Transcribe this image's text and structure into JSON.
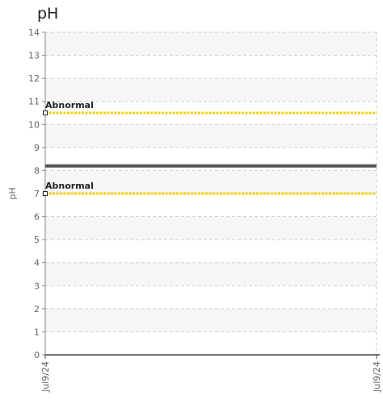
{
  "chart_data": {
    "type": "line",
    "title": "pH",
    "ylabel": "pH",
    "xlabel": "",
    "ylim": [
      0,
      14
    ],
    "yticks": [
      0,
      1,
      2,
      3,
      4,
      5,
      6,
      7,
      8,
      9,
      10,
      11,
      12,
      13,
      14
    ],
    "x_ticks": [
      "Jul9/24",
      "Jul9/24"
    ],
    "grid": true,
    "series": [
      {
        "values": [
          8.2,
          8.2
        ],
        "color": "#555555"
      }
    ],
    "reference_lines": [
      {
        "label": "Abnormal",
        "value": 10.5,
        "color": "#f5d000"
      },
      {
        "label": "Abnormal",
        "value": 7.0,
        "color": "#f5d000"
      }
    ]
  }
}
